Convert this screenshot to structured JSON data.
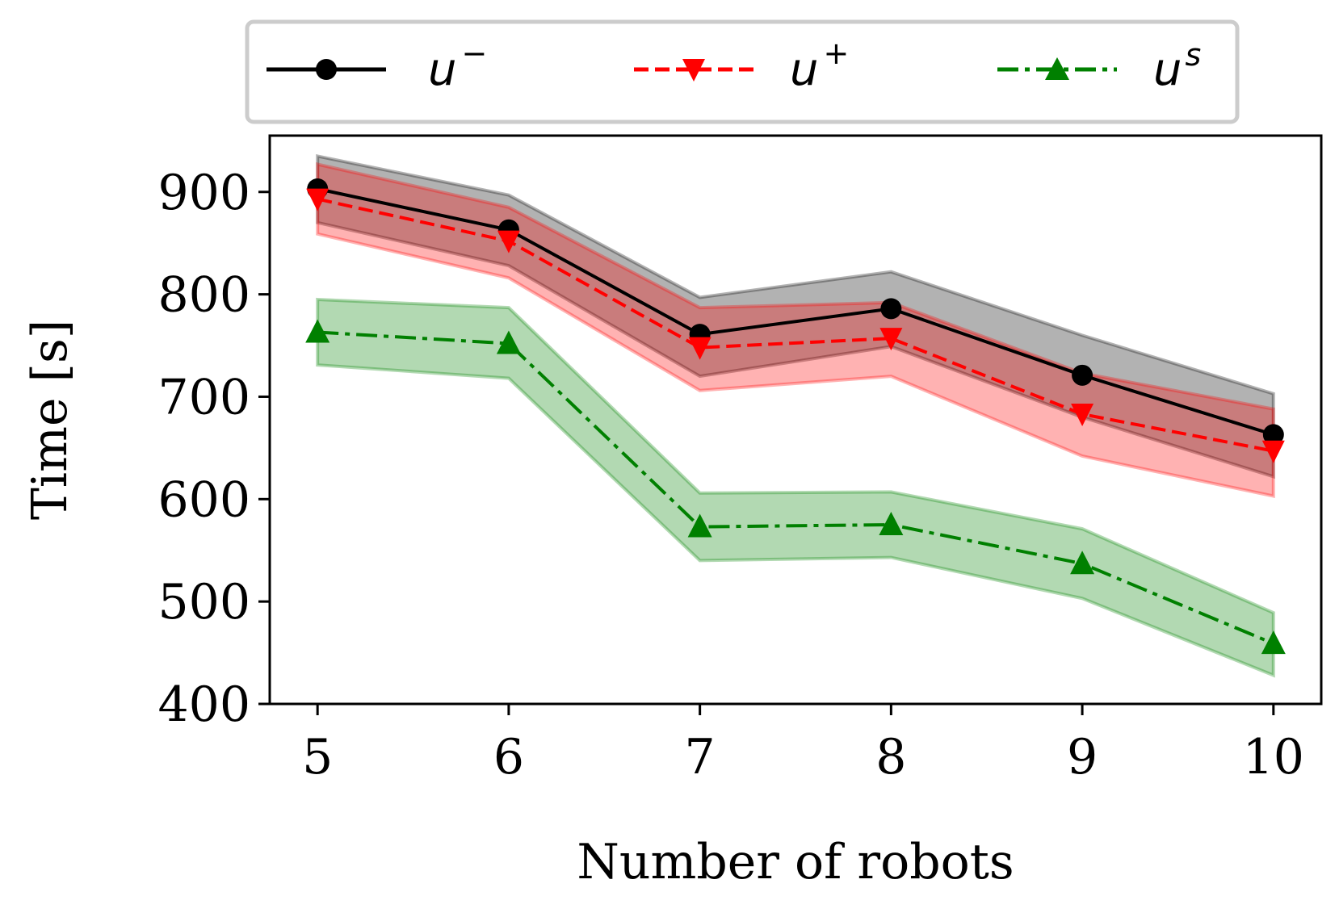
{
  "chart_data": {
    "type": "line",
    "xlabel": "Number of robots",
    "ylabel": "Time [s]",
    "x": [
      5,
      6,
      7,
      8,
      9,
      10
    ],
    "xlim": [
      4.75,
      10.25
    ],
    "ylim": [
      400,
      955
    ],
    "xticks": [
      5,
      6,
      7,
      8,
      9,
      10
    ],
    "yticks": [
      400,
      500,
      600,
      700,
      800,
      900
    ],
    "grid": false,
    "legend_position": "top, above plot",
    "series": [
      {
        "name": "u",
        "name_superscript": "−",
        "color": "#000000",
        "marker": "circle",
        "line_style": "solid",
        "values": [
          903,
          863,
          761,
          786,
          721,
          663
        ],
        "band_upper": [
          935,
          897,
          797,
          822,
          760,
          703
        ],
        "band_lower": [
          870,
          828,
          720,
          749,
          680,
          622
        ]
      },
      {
        "name": "u",
        "name_superscript": "+",
        "color": "#ff0000",
        "marker": "triangle-down",
        "line_style": "dashed",
        "values": [
          893,
          852,
          748,
          757,
          683,
          647
        ],
        "band_upper": [
          927,
          885,
          787,
          792,
          723,
          688
        ],
        "band_lower": [
          859,
          816,
          706,
          720,
          642,
          603
        ]
      },
      {
        "name": "u",
        "name_superscript": "s",
        "color": "#008000",
        "marker": "triangle-up",
        "line_style": "dashdot",
        "values": [
          763,
          752,
          573,
          575,
          537,
          459
        ],
        "band_upper": [
          795,
          787,
          606,
          607,
          571,
          489
        ],
        "band_lower": [
          731,
          718,
          540,
          543,
          503,
          428
        ]
      }
    ]
  }
}
